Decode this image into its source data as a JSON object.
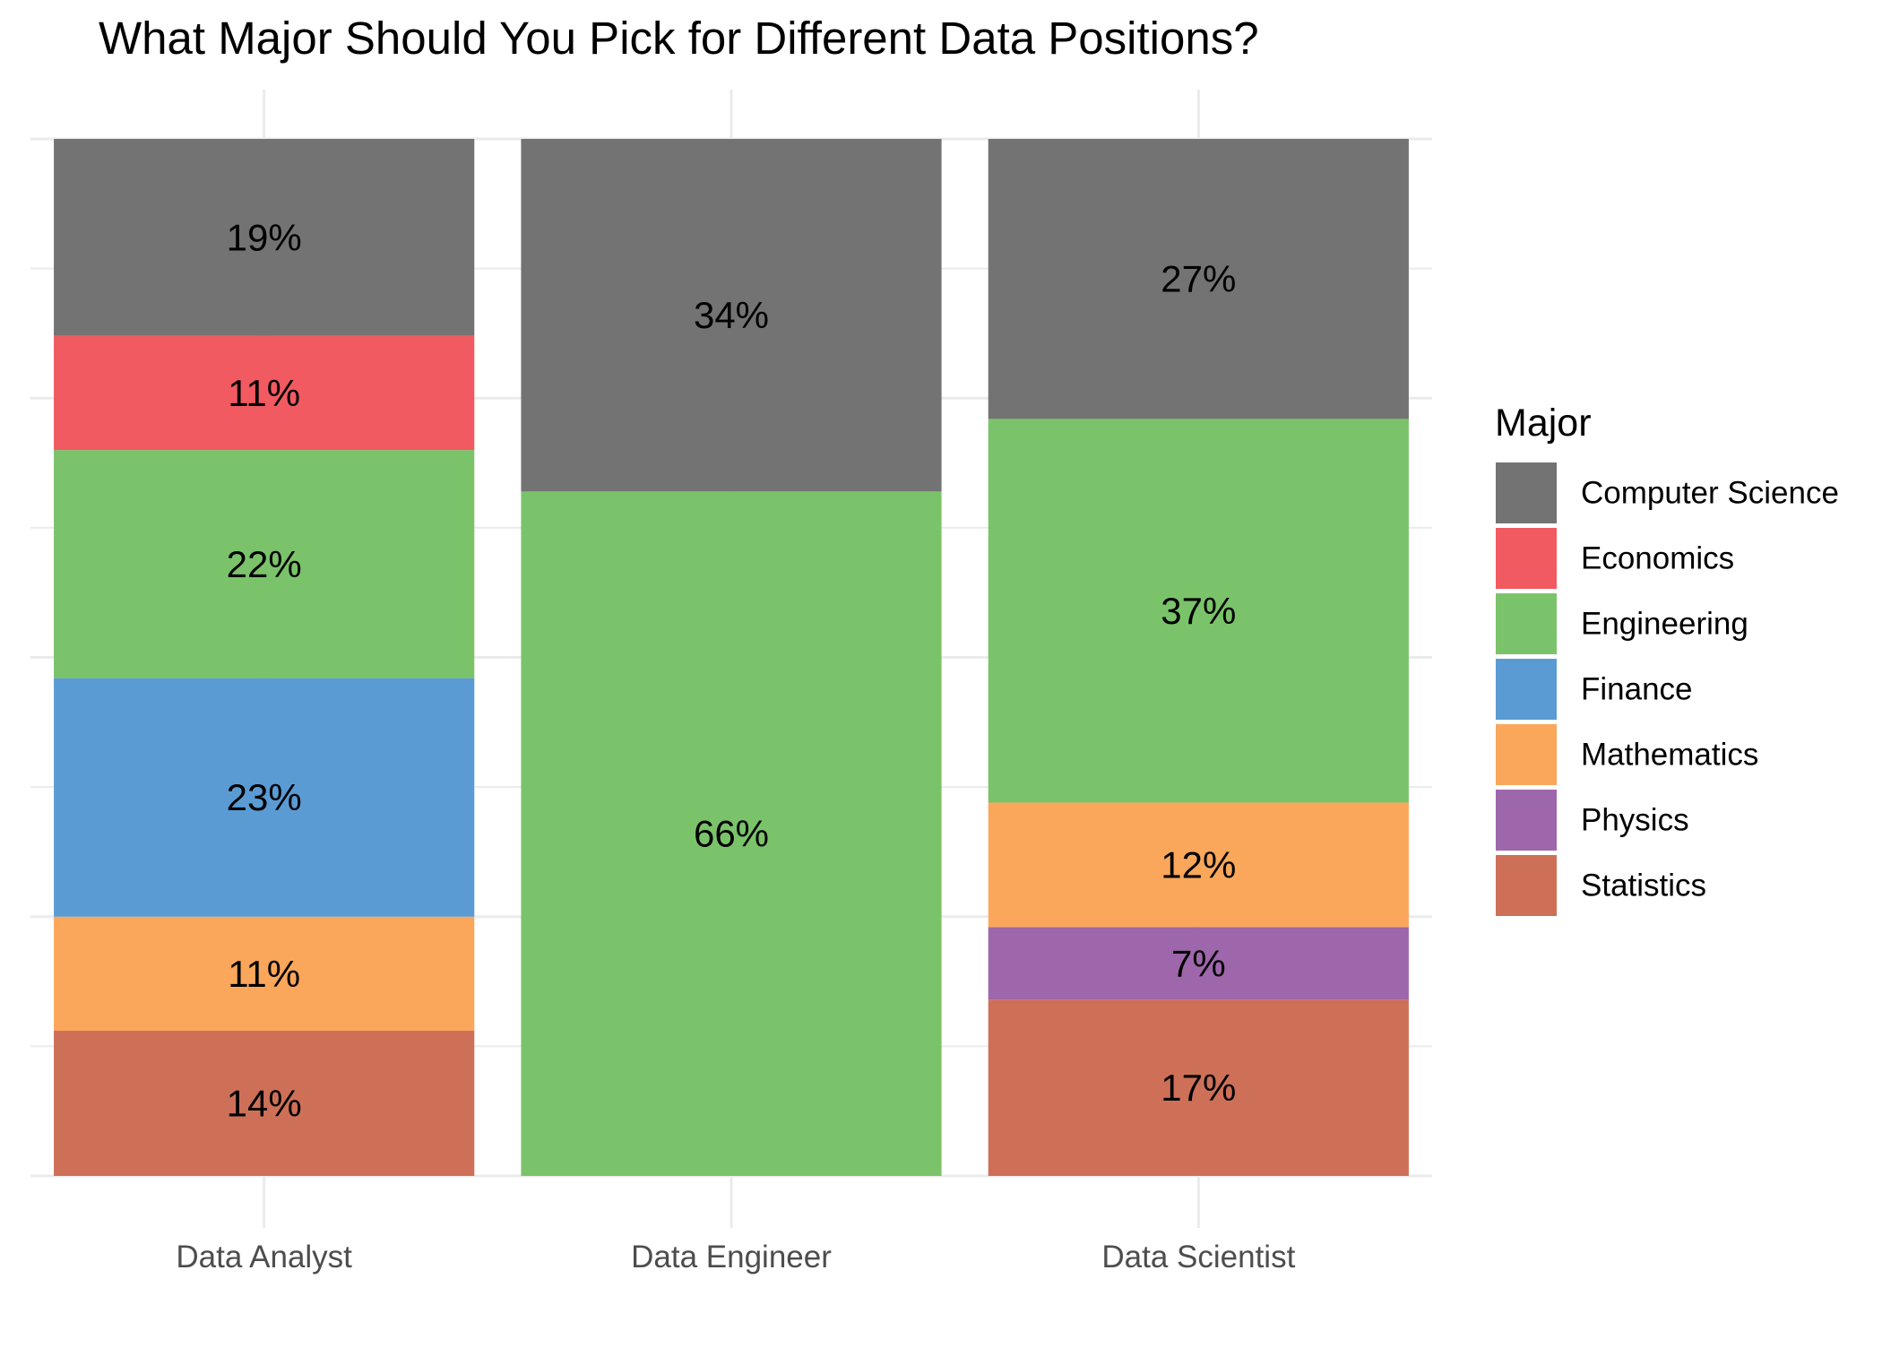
{
  "chart_data": {
    "type": "bar",
    "stacked": true,
    "normalized": true,
    "title": "What Major Should You Pick for Different Data Positions?",
    "xlabel": "",
    "ylabel": "",
    "ylim": [
      0,
      1
    ],
    "grid": true,
    "legend": {
      "title": "Major",
      "position": "right",
      "entries": [
        "Computer Science",
        "Economics",
        "Engineering",
        "Finance",
        "Mathematics",
        "Physics",
        "Statistics"
      ]
    },
    "colors": {
      "Computer Science": "#737373",
      "Economics": "#f15a60",
      "Engineering": "#7ac36a",
      "Finance": "#5a9bd4",
      "Mathematics": "#faa75b",
      "Physics": "#9e66ab",
      "Statistics": "#ce7058"
    },
    "categories": [
      "Data Analyst",
      "Data Engineer",
      "Data Scientist"
    ],
    "series": [
      {
        "name": "Computer Science",
        "values": [
          19,
          34,
          27
        ],
        "labels": [
          "19%",
          "34%",
          "27%"
        ]
      },
      {
        "name": "Economics",
        "values": [
          11,
          0,
          0
        ],
        "labels": [
          "11%",
          "",
          ""
        ]
      },
      {
        "name": "Engineering",
        "values": [
          22,
          66,
          37
        ],
        "labels": [
          "22%",
          "66%",
          "37%"
        ]
      },
      {
        "name": "Finance",
        "values": [
          23,
          0,
          0
        ],
        "labels": [
          "23%",
          "",
          ""
        ]
      },
      {
        "name": "Mathematics",
        "values": [
          11,
          0,
          12
        ],
        "labels": [
          "11%",
          "",
          "12%"
        ]
      },
      {
        "name": "Physics",
        "values": [
          0,
          0,
          7
        ],
        "labels": [
          "",
          "",
          "7%"
        ]
      },
      {
        "name": "Statistics",
        "values": [
          14,
          0,
          17
        ],
        "labels": [
          "14%",
          "",
          "17%"
        ]
      }
    ]
  }
}
